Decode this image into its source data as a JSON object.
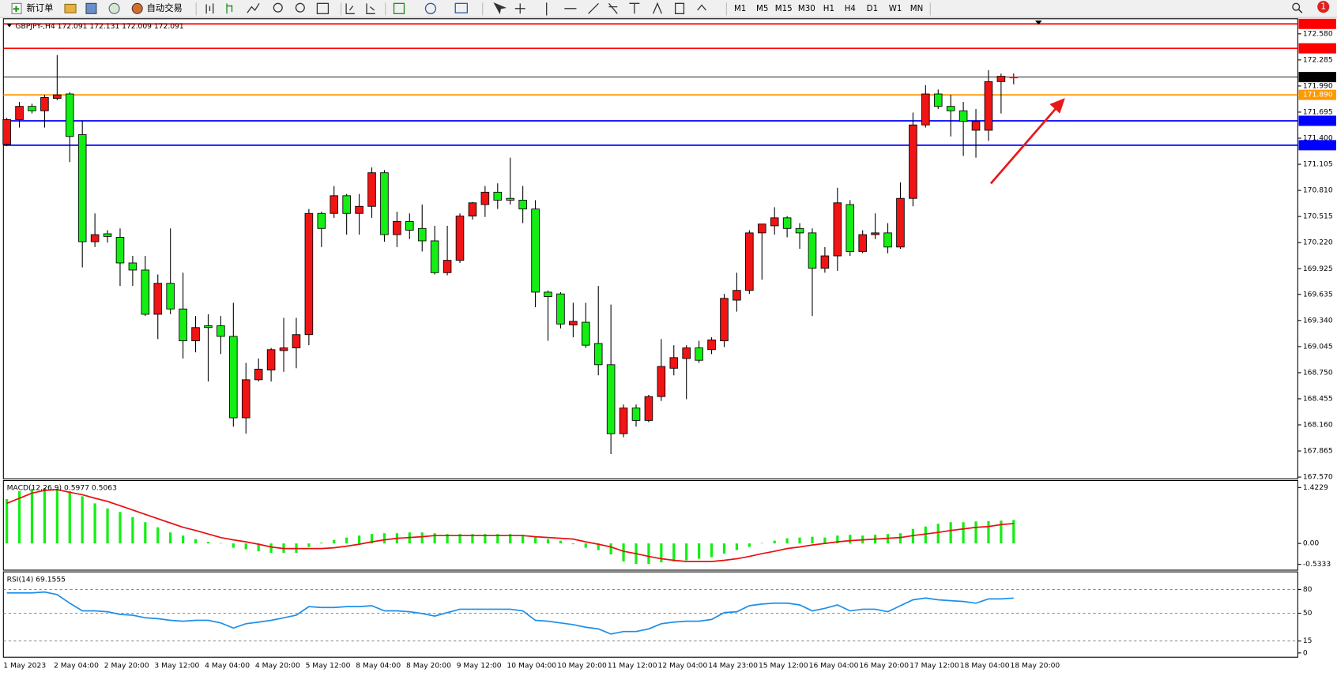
{
  "toolbar": {
    "new_order": "新订单",
    "auto_trading": "自动交易",
    "timeframes": [
      "M1",
      "M5",
      "M15",
      "M30",
      "H1",
      "H4",
      "D1",
      "W1",
      "MN"
    ],
    "notification": "1"
  },
  "chart_data": [
    {
      "type": "candlestick",
      "title": "GBPJPY-,H4  172.091 172.131 172.009 172.091",
      "categories": [
        "1 May 2023",
        null,
        null,
        null,
        "2 May 04:00",
        null,
        null,
        null,
        "2 May 20:00",
        null,
        null,
        null,
        "3 May 12:00",
        null,
        null,
        null,
        "4 May 04:00",
        null,
        null,
        null,
        "4 May 20:00",
        null,
        null,
        null,
        "5 May 12:00",
        null,
        null,
        null,
        "8 May 04:00",
        null,
        null,
        null,
        "8 May 20:00",
        null,
        null,
        null,
        "9 May 12:00",
        null,
        null,
        null,
        "10 May 04:00",
        null,
        null,
        null,
        "10 May 20:00",
        null,
        null,
        null,
        "11 May 12:00",
        null,
        null,
        null,
        "12 May 04:00",
        null,
        null,
        null,
        "14 May 23:00",
        null,
        null,
        null,
        "15 May 12:00",
        null,
        null,
        null,
        "16 May 04:00",
        null,
        null,
        null,
        "16 May 20:00",
        null,
        null,
        null,
        "17 May 12:00",
        null,
        null,
        null,
        "18 May 04:00",
        null,
        null,
        null,
        "18 May 20:00"
      ],
      "open": [
        171.33,
        171.61,
        171.76,
        171.71,
        171.85,
        171.9,
        171.44,
        170.23,
        170.32,
        170.28,
        169.99,
        169.91,
        169.41,
        169.76,
        169.47,
        169.11,
        169.28,
        169.28,
        169.16,
        168.24,
        168.67,
        168.78,
        169.0,
        169.03,
        169.18,
        170.55,
        170.55,
        170.75,
        170.55,
        170.63,
        171.01,
        170.31,
        170.46,
        170.38,
        170.24,
        169.88,
        170.02,
        170.52,
        170.65,
        170.79,
        170.72,
        170.7,
        170.6,
        169.66,
        169.64,
        169.29,
        169.32,
        169.08,
        168.84,
        168.06,
        168.35,
        168.21,
        168.48,
        168.8,
        168.91,
        169.03,
        169.01,
        169.11,
        169.57,
        169.68,
        170.33,
        170.41,
        170.5,
        170.38,
        170.33,
        169.93,
        170.07,
        170.65,
        170.12,
        170.31,
        170.33,
        170.17,
        170.72,
        171.55,
        171.9,
        171.76,
        171.71,
        171.49,
        171.49,
        172.04,
        172.091
      ],
      "high": [
        171.63,
        171.81,
        171.79,
        171.89,
        172.34,
        171.92,
        171.6,
        170.55,
        170.36,
        170.38,
        170.07,
        170.07,
        169.86,
        170.38,
        169.88,
        169.39,
        169.41,
        169.39,
        169.54,
        168.86,
        168.91,
        169.03,
        169.37,
        169.37,
        170.6,
        170.57,
        170.86,
        170.77,
        170.77,
        171.07,
        171.04,
        170.57,
        170.55,
        170.65,
        170.41,
        170.41,
        170.55,
        170.68,
        170.86,
        170.89,
        171.18,
        170.86,
        170.7,
        169.68,
        169.66,
        169.54,
        169.54,
        169.73,
        169.52,
        168.39,
        168.39,
        168.5,
        169.13,
        169.06,
        169.06,
        169.11,
        169.15,
        169.64,
        169.88,
        170.36,
        170.43,
        170.62,
        170.52,
        170.44,
        170.38,
        170.17,
        170.84,
        170.7,
        170.36,
        170.55,
        170.44,
        170.9,
        171.69,
        172.0,
        171.95,
        171.89,
        171.81,
        171.73,
        172.17,
        172.13,
        172.131
      ],
      "low": [
        171.31,
        171.52,
        171.68,
        171.52,
        171.83,
        171.13,
        169.94,
        170.17,
        170.22,
        169.73,
        169.73,
        169.39,
        169.13,
        169.41,
        168.91,
        168.98,
        168.65,
        168.96,
        168.14,
        168.06,
        168.65,
        168.65,
        168.76,
        168.8,
        169.06,
        170.17,
        170.5,
        170.31,
        170.31,
        170.5,
        170.23,
        170.17,
        170.26,
        170.12,
        169.86,
        169.85,
        169.99,
        170.48,
        170.51,
        170.6,
        170.65,
        170.44,
        169.49,
        169.11,
        169.25,
        169.15,
        169.03,
        168.72,
        167.83,
        168.02,
        168.14,
        168.19,
        168.43,
        168.72,
        168.45,
        168.86,
        168.96,
        169.04,
        169.44,
        169.64,
        169.8,
        170.31,
        170.28,
        170.15,
        169.39,
        169.88,
        169.9,
        170.07,
        170.1,
        170.26,
        170.1,
        170.15,
        170.63,
        171.52,
        171.73,
        171.42,
        171.2,
        171.18,
        171.37,
        171.68,
        172.009
      ],
      "close": [
        171.61,
        171.76,
        171.71,
        171.86,
        171.89,
        171.42,
        170.23,
        170.31,
        170.29,
        169.99,
        169.91,
        169.41,
        169.76,
        169.47,
        169.11,
        169.26,
        169.26,
        169.16,
        168.24,
        168.67,
        168.79,
        169.01,
        169.03,
        169.18,
        170.55,
        170.38,
        170.75,
        170.55,
        170.63,
        171.01,
        170.31,
        170.46,
        170.36,
        170.24,
        169.88,
        170.02,
        170.52,
        170.67,
        170.79,
        170.7,
        170.7,
        170.6,
        169.66,
        169.61,
        169.3,
        169.33,
        169.06,
        168.84,
        168.06,
        168.35,
        168.21,
        168.48,
        168.82,
        168.92,
        169.03,
        168.89,
        169.12,
        169.59,
        169.68,
        170.33,
        170.43,
        170.5,
        170.38,
        170.33,
        169.93,
        170.07,
        170.67,
        170.12,
        170.31,
        170.33,
        170.17,
        170.72,
        171.55,
        171.9,
        171.76,
        171.71,
        171.59,
        171.59,
        172.04,
        172.1,
        172.091
      ],
      "up_color": "#f01414",
      "down_color": "#14ee14",
      "ylim": [
        167.55,
        172.75
      ],
      "yticks": [
        {
          "value": 172.58,
          "label": "172.580"
        },
        172.285,
        {
          "value": 171.99,
          "label": "171.990"
        },
        171.695,
        {
          "value": 171.4,
          "label": "171.400"
        },
        171.105,
        {
          "value": 170.81,
          "label": "170.810"
        },
        170.515,
        {
          "value": 170.22,
          "label": "170.220"
        },
        169.925,
        169.635,
        {
          "value": 169.34,
          "label": "169.340"
        },
        169.045,
        {
          "value": 168.75,
          "label": "168.750"
        },
        168.455,
        {
          "value": 168.16,
          "label": "168.160"
        },
        167.865,
        {
          "value": 167.57,
          "label": "167.570"
        }
      ],
      "levels": [
        {
          "value": 172.692,
          "color": "#ff0000"
        },
        {
          "value": 172.416,
          "color": "#ff0000"
        },
        {
          "value": 172.091,
          "color": "#000000"
        },
        {
          "value": 171.89,
          "label": "171.890",
          "color": "#ff9900"
        },
        {
          "value": 171.597,
          "color": "#0000ff"
        },
        {
          "value": 171.321,
          "color": "#0000ff"
        }
      ],
      "grid": false
    },
    {
      "type": "combo",
      "title": "MACD(12,26,9) 0.5977 0.5063",
      "series": [
        {
          "type": "bar",
          "color": "#14ee14",
          "values": [
            1.13,
            1.33,
            1.39,
            1.41,
            1.39,
            1.33,
            1.2,
            1.02,
            0.89,
            0.8,
            0.67,
            0.54,
            0.41,
            0.28,
            0.2,
            0.11,
            0.04,
            0.01,
            -0.11,
            -0.15,
            -0.2,
            -0.24,
            -0.24,
            -0.24,
            -0.09,
            0.02,
            0.09,
            0.15,
            0.2,
            0.24,
            0.26,
            0.26,
            0.28,
            0.28,
            0.26,
            0.24,
            0.24,
            0.24,
            0.24,
            0.24,
            0.24,
            0.22,
            0.17,
            0.11,
            0.07,
            -0.02,
            -0.11,
            -0.17,
            -0.28,
            -0.46,
            -0.52,
            -0.52,
            -0.48,
            -0.46,
            -0.43,
            -0.39,
            -0.35,
            -0.26,
            -0.17,
            -0.09,
            0.01,
            0.07,
            0.13,
            0.15,
            0.17,
            0.15,
            0.2,
            0.22,
            0.2,
            0.22,
            0.24,
            0.26,
            0.37,
            0.43,
            0.5,
            0.54,
            0.54,
            0.56,
            0.57,
            0.58,
            0.5977
          ]
        },
        {
          "type": "line",
          "color": "#e81010",
          "values": [
            1.02,
            1.15,
            1.28,
            1.35,
            1.37,
            1.3,
            1.24,
            1.15,
            1.07,
            0.96,
            0.85,
            0.74,
            0.63,
            0.52,
            0.41,
            0.33,
            0.24,
            0.15,
            0.09,
            0.04,
            -0.02,
            -0.09,
            -0.13,
            -0.13,
            -0.13,
            -0.13,
            -0.11,
            -0.07,
            -0.02,
            0.04,
            0.09,
            0.13,
            0.15,
            0.17,
            0.2,
            0.2,
            0.2,
            0.2,
            0.2,
            0.2,
            0.2,
            0.2,
            0.17,
            0.15,
            0.13,
            0.11,
            0.04,
            -0.02,
            -0.09,
            -0.2,
            -0.26,
            -0.33,
            -0.39,
            -0.43,
            -0.46,
            -0.46,
            -0.46,
            -0.43,
            -0.39,
            -0.33,
            -0.26,
            -0.2,
            -0.13,
            -0.09,
            -0.04,
            0.0,
            0.04,
            0.07,
            0.09,
            0.11,
            0.13,
            0.15,
            0.2,
            0.24,
            0.28,
            0.33,
            0.37,
            0.41,
            0.43,
            0.48,
            0.5063
          ]
        }
      ],
      "ylim": [
        -0.68,
        1.6
      ],
      "yticks": [
        1.4229,
        {
          "value": 0,
          "label": "0.00"
        },
        -0.5333
      ]
    },
    {
      "type": "line",
      "title": "RSI(14) 69.1555",
      "color": "#1e8fe8",
      "values": [
        75.7,
        75.7,
        75.7,
        76.8,
        73.5,
        62.7,
        53.0,
        53.0,
        51.9,
        48.6,
        47.6,
        44.3,
        43.2,
        41.1,
        40.0,
        41.1,
        41.1,
        37.8,
        31.4,
        36.8,
        38.9,
        41.1,
        44.3,
        47.6,
        58.4,
        57.3,
        57.3,
        58.4,
        58.4,
        59.5,
        53.0,
        53.0,
        51.9,
        49.7,
        46.5,
        50.8,
        55.1,
        55.1,
        55.1,
        55.1,
        55.1,
        53.0,
        41.1,
        40.0,
        37.8,
        35.7,
        32.4,
        30.3,
        23.8,
        27.0,
        27.0,
        30.3,
        36.8,
        38.9,
        40.0,
        40.0,
        42.2,
        50.8,
        51.9,
        59.5,
        61.6,
        62.7,
        62.7,
        60.5,
        53.0,
        56.2,
        60.5,
        53.0,
        55.1,
        55.1,
        51.9,
        59.5,
        67.0,
        69.2,
        67.0,
        65.9,
        64.9,
        62.7,
        68.1,
        68.1,
        69.1555
      ],
      "ylim": [
        0,
        100
      ],
      "yticks": [
        80,
        50,
        15,
        0
      ],
      "grid": true
    }
  ]
}
